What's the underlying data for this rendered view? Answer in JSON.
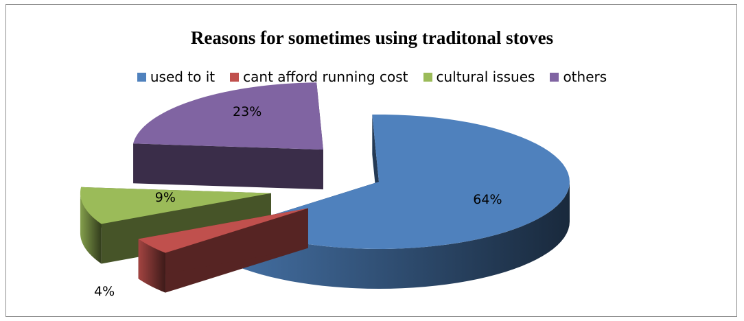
{
  "chart_data": {
    "type": "pie",
    "title": "Reasons for sometimes using traditonal stoves",
    "legend_position": "top",
    "series": [
      {
        "name": "used to it",
        "value": 64,
        "label": "64%",
        "color": "#4f81bd"
      },
      {
        "name": "cant afford running cost",
        "value": 4,
        "label": "4%",
        "color": "#c0504d"
      },
      {
        "name": "cultural issues",
        "value": 9,
        "label": "9%",
        "color": "#9bbb59"
      },
      {
        "name": "others",
        "value": 23,
        "label": "23%",
        "color": "#8064a2"
      }
    ]
  }
}
